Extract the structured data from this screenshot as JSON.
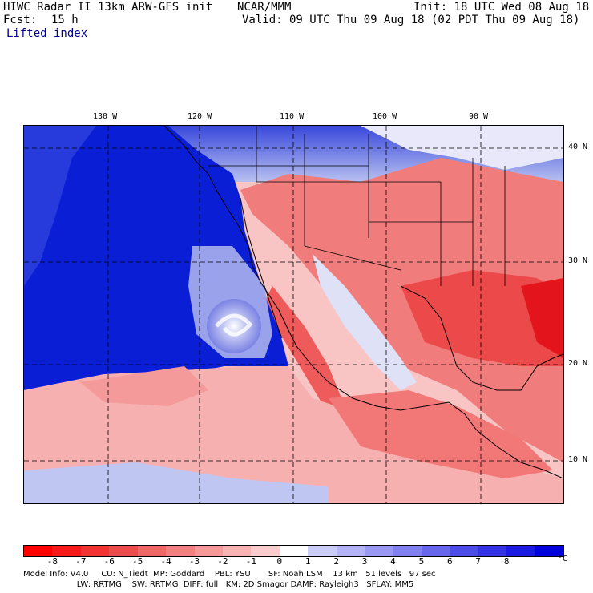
{
  "header": {
    "title": "HIWC Radar II 13km ARW-GFS init",
    "org": "NCAR/MMM",
    "init": "Init: 18 UTC Wed 08 Aug 18",
    "fcst_label": "Fcst:",
    "fcst_value": "15 h",
    "valid": "Valid: 09 UTC Thu 09 Aug 18 (02 PDT Thu 09 Aug 18)",
    "field": "Lifted index"
  },
  "map": {
    "lon_labels": [
      "130 W",
      "120 W",
      "110 W",
      "100 W",
      "90 W"
    ],
    "lat_labels": [
      "40 N",
      "30 N",
      "20 N",
      "10 N"
    ],
    "colors": {
      "ocean_stable": "#0a1ed6",
      "land_unstable": "#f06a6a",
      "strong_unstable": "#e8121e"
    }
  },
  "colorbar": {
    "ticks": [
      "-8",
      "-7",
      "-6",
      "-5",
      "-4",
      "-3",
      "-2",
      "-1",
      "0",
      "1",
      "2",
      "3",
      "4",
      "5",
      "6",
      "7",
      "8"
    ],
    "unit": "°C",
    "colors": [
      "#ff0000",
      "#f81a1a",
      "#f23333",
      "#ec4c4c",
      "#ef6666",
      "#f28080",
      "#f59999",
      "#f8b3b3",
      "#fbcccc",
      "#ffffff",
      "#ccccf8",
      "#b3b3f5",
      "#9999f2",
      "#8080ef",
      "#6666ec",
      "#4c4ce8",
      "#3333e5",
      "#1a1ae2",
      "#0000df"
    ]
  },
  "footer": {
    "line1": "Model Info: V4.0     CU: N_Tiedt  MP: Goddard    PBL: YSU       SF: Noah LSM    13 km   51 levels   97 sec",
    "line2": "                     LW: RRTMG    SW: RRTMG  DIFF: full   KM: 2D Smagor DAMP: Rayleigh3   SFLAY: MM5"
  }
}
